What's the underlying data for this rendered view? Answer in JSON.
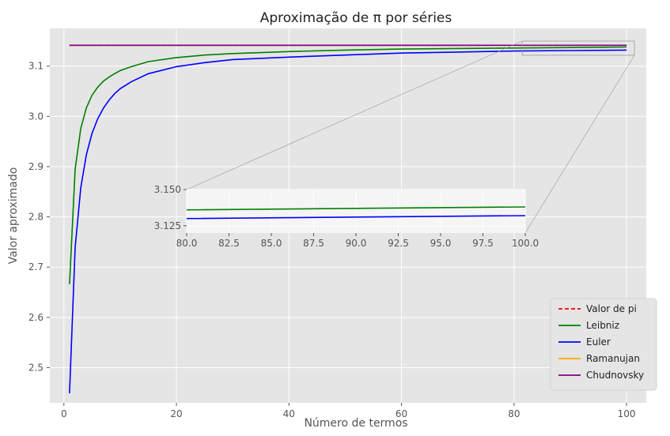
{
  "chart_data": {
    "type": "line",
    "title": "Aproximação de π por séries",
    "xlabel": "Número de termos",
    "ylabel": "Valor aproximado",
    "xlim": [
      -2.5,
      103.5
    ],
    "ylim": [
      2.43,
      3.175
    ],
    "xticks": [
      "0",
      "20",
      "40",
      "60",
      "80",
      "100"
    ],
    "yticks": [
      "2.5",
      "2.6",
      "2.7",
      "2.8",
      "2.9",
      "3.0",
      "3.1"
    ],
    "grid": true,
    "legend_position": "bottom-right",
    "series": [
      {
        "name": "Valor de pi",
        "color": "#ff0000",
        "style": "dashed",
        "x": [
          1,
          100
        ],
        "y": [
          3.14159,
          3.14159
        ]
      },
      {
        "name": "Leibniz",
        "color": "#008000",
        "style": "solid",
        "x": [
          1,
          2,
          3,
          4,
          5,
          6,
          7,
          8,
          9,
          10,
          12,
          15,
          20,
          25,
          30,
          40,
          50,
          60,
          70,
          80,
          90,
          100
        ],
        "y": [
          2.666,
          2.895,
          2.976,
          3.017,
          3.042,
          3.058,
          3.07,
          3.078,
          3.085,
          3.091,
          3.099,
          3.109,
          3.117,
          3.122,
          3.125,
          3.129,
          3.132,
          3.134,
          3.135,
          3.136,
          3.137,
          3.138
        ]
      },
      {
        "name": "Euler",
        "color": "#0000ff",
        "style": "solid",
        "x": [
          1,
          2,
          3,
          4,
          5,
          6,
          7,
          8,
          9,
          10,
          12,
          15,
          20,
          25,
          30,
          40,
          50,
          60,
          70,
          80,
          90,
          100
        ],
        "y": [
          2.449,
          2.739,
          2.858,
          2.924,
          2.966,
          2.995,
          3.016,
          3.032,
          3.045,
          3.055,
          3.069,
          3.085,
          3.099,
          3.107,
          3.113,
          3.118,
          3.122,
          3.126,
          3.128,
          3.13,
          3.131,
          3.132
        ]
      },
      {
        "name": "Ramanujan",
        "color": "#ffa500",
        "style": "solid",
        "x": [
          1,
          100
        ],
        "y": [
          3.14159,
          3.14159
        ]
      },
      {
        "name": "Chudnovsky",
        "color": "#800080",
        "style": "solid",
        "x": [
          1,
          100
        ],
        "y": [
          3.14159,
          3.14159
        ]
      }
    ],
    "inset": {
      "xlim": [
        80,
        100
      ],
      "ylim": [
        3.12,
        3.15
      ],
      "xticks": [
        "80.0",
        "82.5",
        "85.0",
        "87.5",
        "90.0",
        "92.5",
        "95.0",
        "97.5",
        "100.0"
      ],
      "yticks": [
        "3.125",
        "3.150"
      ]
    }
  }
}
